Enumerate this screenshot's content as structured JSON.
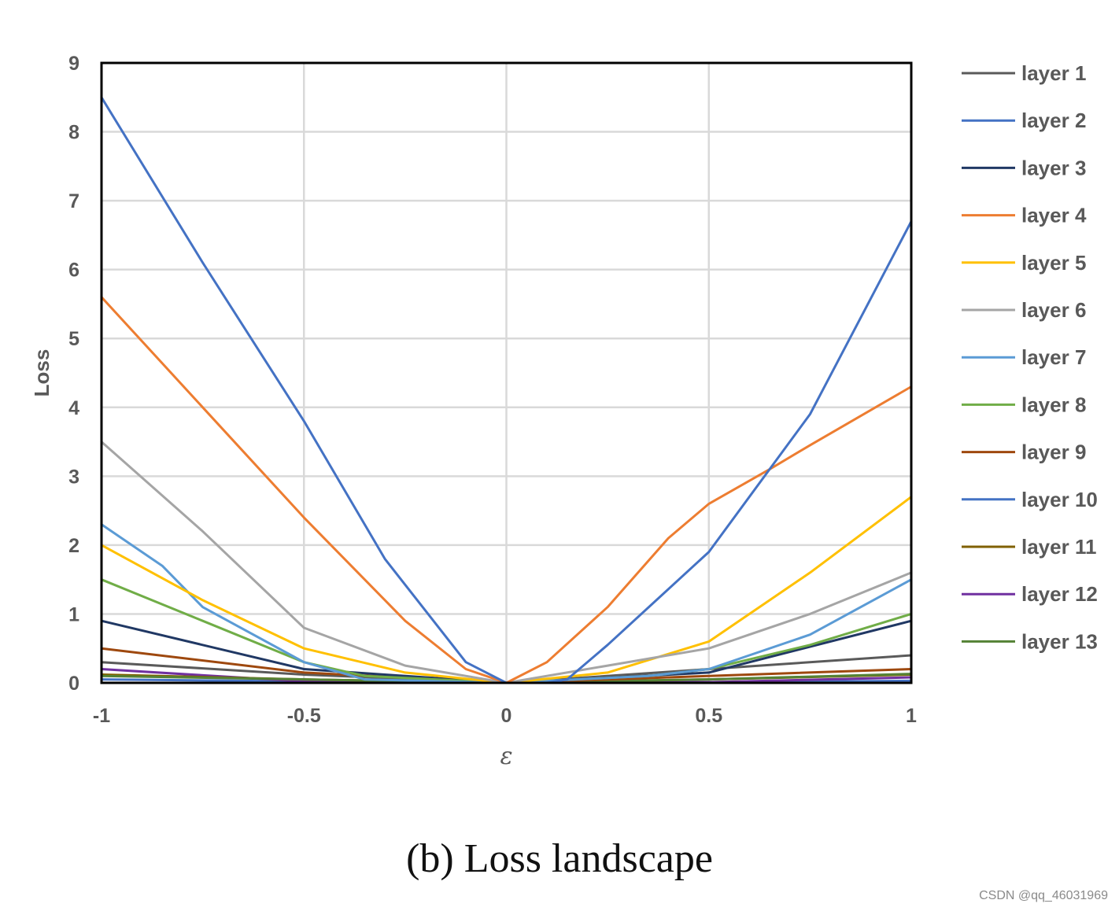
{
  "chart_data": {
    "type": "line",
    "title": "",
    "xlabel": "ε",
    "ylabel": "Loss",
    "xlim": [
      -1,
      1
    ],
    "ylim": [
      0,
      9
    ],
    "x_ticks": [
      "-1",
      "-0.5",
      "0",
      "0.5",
      "1"
    ],
    "y_ticks": [
      "0",
      "1",
      "2",
      "3",
      "4",
      "5",
      "6",
      "7",
      "8",
      "9"
    ],
    "grid": true,
    "legend_position": "right",
    "series": [
      {
        "name": "layer 1",
        "color": "#5a5a5a",
        "x": [
          -1,
          -0.5,
          0,
          0.5,
          1
        ],
        "y": [
          0.3,
          0.12,
          0,
          0.2,
          0.4
        ]
      },
      {
        "name": "layer 2",
        "color": "#4472c4",
        "x": [
          -1,
          -0.75,
          -0.5,
          -0.3,
          -0.1,
          0,
          0.1,
          0.15,
          0.25,
          0.5,
          0.75,
          1
        ],
        "y": [
          8.5,
          6.1,
          3.8,
          1.8,
          0.3,
          0,
          0,
          0.05,
          0.55,
          1.9,
          3.9,
          6.7
        ]
      },
      {
        "name": "layer 3",
        "color": "#203864",
        "x": [
          -1,
          -0.5,
          0,
          0.5,
          1
        ],
        "y": [
          0.9,
          0.2,
          0,
          0.15,
          0.9
        ]
      },
      {
        "name": "layer 4",
        "color": "#ed7d31",
        "x": [
          -1,
          -0.75,
          -0.5,
          -0.25,
          -0.1,
          0,
          0.1,
          0.25,
          0.4,
          0.5,
          0.65,
          0.75,
          1
        ],
        "y": [
          5.6,
          4.0,
          2.4,
          0.9,
          0.2,
          0,
          0.3,
          1.1,
          2.1,
          2.6,
          3.1,
          3.45,
          4.3
        ]
      },
      {
        "name": "layer 5",
        "color": "#ffc000",
        "x": [
          -1,
          -0.75,
          -0.5,
          -0.25,
          0,
          0.25,
          0.5,
          0.75,
          1
        ],
        "y": [
          2.0,
          1.2,
          0.5,
          0.15,
          0,
          0.15,
          0.6,
          1.6,
          2.7
        ]
      },
      {
        "name": "layer 6",
        "color": "#a5a5a5",
        "x": [
          -1,
          -0.75,
          -0.5,
          -0.25,
          0,
          0.25,
          0.5,
          0.75,
          1
        ],
        "y": [
          3.5,
          2.2,
          0.8,
          0.25,
          0,
          0.25,
          0.5,
          1.0,
          1.6
        ]
      },
      {
        "name": "layer 7",
        "color": "#5b9bd5",
        "x": [
          -1,
          -0.85,
          -0.75,
          -0.5,
          -0.35,
          0,
          0.35,
          0.5,
          0.75,
          1
        ],
        "y": [
          2.3,
          1.7,
          1.1,
          0.3,
          0.05,
          0,
          0.1,
          0.2,
          0.7,
          1.5
        ]
      },
      {
        "name": "layer 8",
        "color": "#70ad47",
        "x": [
          -1,
          -0.75,
          -0.5,
          -0.35,
          0,
          0.35,
          0.5,
          0.75,
          1
        ],
        "y": [
          1.5,
          0.9,
          0.3,
          0.1,
          0,
          0.1,
          0.2,
          0.55,
          1.0
        ]
      },
      {
        "name": "layer 9",
        "color": "#9e480e",
        "x": [
          -1,
          -0.5,
          0,
          0.5,
          1
        ],
        "y": [
          0.5,
          0.15,
          0,
          0.1,
          0.2
        ]
      },
      {
        "name": "layer 10",
        "color": "#4472c4",
        "x": [
          -1,
          -0.5,
          0,
          0.5,
          1
        ],
        "y": [
          0.05,
          0.02,
          0,
          0.01,
          0.03
        ]
      },
      {
        "name": "layer 11",
        "color": "#806000",
        "x": [
          -1,
          -0.5,
          0,
          0.5,
          1
        ],
        "y": [
          0.12,
          0.05,
          0,
          0.05,
          0.12
        ]
      },
      {
        "name": "layer 12",
        "color": "#7030a0",
        "x": [
          -1,
          -0.5,
          0,
          0.5,
          1
        ],
        "y": [
          0.2,
          0.02,
          0,
          0.01,
          0.08
        ]
      },
      {
        "name": "layer 13",
        "color": "#548235",
        "x": [
          -1,
          -0.5,
          0,
          0.5,
          1
        ],
        "y": [
          0.1,
          0.05,
          0,
          0.05,
          0.13
        ]
      }
    ]
  },
  "caption": "(b) Loss landscape",
  "watermark": "CSDN @qq_46031969"
}
